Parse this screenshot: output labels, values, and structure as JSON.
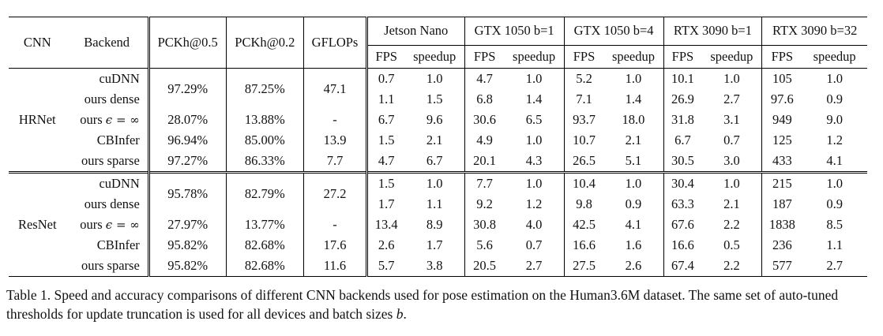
{
  "headers": {
    "cnn": "CNN",
    "backend": "Backend",
    "pckh05": "PCKh@0.5",
    "pckh02": "PCKh@0.2",
    "gflops": "GFLOPs",
    "devices": [
      "Jetson Nano",
      "GTX 1050 b=1",
      "GTX 1050 b=4",
      "RTX 3090 b=1",
      "RTX 3090 b=32"
    ],
    "fps": "FPS",
    "speedup": "speedup"
  },
  "sections": [
    {
      "name": "HRNet",
      "rows": [
        {
          "backend": "cuDNN",
          "pckh05": "97.29%",
          "pckh02": "87.25%",
          "gflops": "47.1",
          "vals": [
            "0.7",
            "1.0",
            "4.7",
            "1.0",
            "5.2",
            "1.0",
            "10.1",
            "1.0",
            "105",
            "1.0"
          ]
        },
        {
          "backend": "ours dense",
          "vals": [
            "1.1",
            "1.5",
            "6.8",
            "1.4",
            "7.1",
            "1.4",
            "26.9",
            "2.7",
            "97.6",
            "0.9"
          ]
        },
        {
          "backend_prefix": "ours ",
          "backend_math": "ϵ = ∞",
          "pckh05": "28.07%",
          "pckh02": "13.88%",
          "gflops": "-",
          "vals": [
            "6.7",
            "9.6",
            "30.6",
            "6.5",
            "93.7",
            "18.0",
            "31.8",
            "3.1",
            "949",
            "9.0"
          ]
        },
        {
          "backend": "CBInfer",
          "pckh05": "96.94%",
          "pckh02": "85.00%",
          "gflops": "13.9",
          "vals": [
            "1.5",
            "2.1",
            "4.9",
            "1.0",
            "10.7",
            "2.1",
            "6.7",
            "0.7",
            "125",
            "1.2"
          ]
        },
        {
          "backend": "ours sparse",
          "pckh05": "97.27%",
          "pckh02": "86.33%",
          "gflops": "7.7",
          "vals": [
            "4.7",
            "6.7",
            "20.1",
            "4.3",
            "26.5",
            "5.1",
            "30.5",
            "3.0",
            "433",
            "4.1"
          ]
        }
      ]
    },
    {
      "name": "ResNet",
      "rows": [
        {
          "backend": "cuDNN",
          "pckh05": "95.78%",
          "pckh02": "82.79%",
          "gflops": "27.2",
          "vals": [
            "1.5",
            "1.0",
            "7.7",
            "1.0",
            "10.4",
            "1.0",
            "30.4",
            "1.0",
            "215",
            "1.0"
          ]
        },
        {
          "backend": "ours dense",
          "vals": [
            "1.7",
            "1.1",
            "9.2",
            "1.2",
            "9.8",
            "0.9",
            "63.3",
            "2.1",
            "187",
            "0.9"
          ]
        },
        {
          "backend_prefix": "ours ",
          "backend_math": "ϵ = ∞",
          "pckh05": "27.97%",
          "pckh02": "13.77%",
          "gflops": "-",
          "vals": [
            "13.4",
            "8.9",
            "30.8",
            "4.0",
            "42.5",
            "4.1",
            "67.6",
            "2.2",
            "1838",
            "8.5"
          ]
        },
        {
          "backend": "CBInfer",
          "pckh05": "95.82%",
          "pckh02": "82.68%",
          "gflops": "17.6",
          "vals": [
            "2.6",
            "1.7",
            "5.6",
            "0.7",
            "16.6",
            "1.6",
            "16.6",
            "0.5",
            "236",
            "1.1"
          ]
        },
        {
          "backend": "ours sparse",
          "pckh05": "95.82%",
          "pckh02": "82.68%",
          "gflops": "11.6",
          "vals": [
            "5.7",
            "3.8",
            "20.5",
            "2.7",
            "27.5",
            "2.6",
            "67.4",
            "2.2",
            "577",
            "2.7"
          ]
        }
      ]
    }
  ],
  "caption": {
    "prefix": "Table 1. Speed and accuracy comparisons of different CNN backends used for pose estimation on the Human3.6M dataset. The same set of auto-tuned thresholds for update truncation is used for all devices and batch sizes ",
    "var": "b",
    "suffix": "."
  }
}
